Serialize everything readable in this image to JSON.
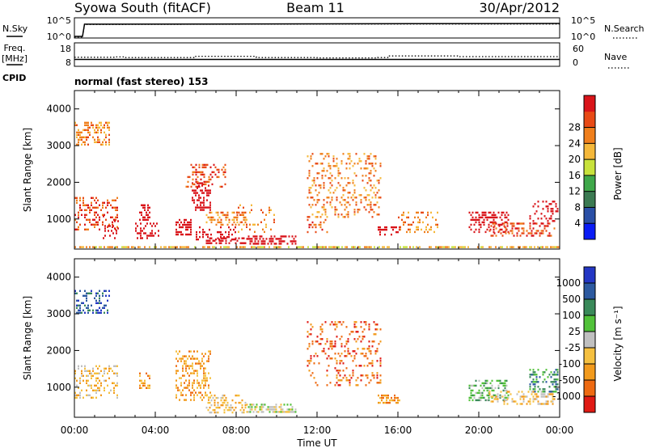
{
  "header": {
    "station": "Syowa South (fitACF)",
    "beam": "Beam 11",
    "date": "30/Apr/2012"
  },
  "aux_labels": {
    "nsky": "N.Sky",
    "nsearch": "N.Search",
    "freq_line1": "Freq.",
    "freq_line2": "[MHz]",
    "nave": "Nave",
    "cpid": "CPID",
    "cpid_value": "normal (fast stereo) 153"
  },
  "chart_data": [
    {
      "type": "line",
      "name": "noise",
      "left_ticks": [
        "10^5",
        "10^0"
      ],
      "right_ticks": [
        "10^5",
        "10^0"
      ],
      "series": [
        {
          "name": "N.Sky",
          "x": [
            0,
            0.4,
            0.5,
            12,
            24
          ],
          "values": [
            0,
            0,
            3.6,
            3.7,
            3.8
          ]
        },
        {
          "name": "N.Search",
          "x": [
            0,
            0.4,
            0.5,
            12,
            24
          ],
          "values": [
            0,
            0,
            3.7,
            3.8,
            3.8
          ]
        }
      ]
    },
    {
      "type": "line",
      "name": "frequency-nave",
      "left_ticks": [
        "18",
        "8"
      ],
      "right_ticks": [
        "60",
        "0"
      ],
      "ylim_left": [
        8,
        18
      ],
      "ylim_right": [
        0,
        60
      ],
      "series": [
        {
          "name": "Freq.",
          "x": [
            0,
            24
          ],
          "values": [
            10.7,
            10.7
          ]
        },
        {
          "name": "Nave",
          "x": [
            0,
            2,
            2.5,
            6,
            9,
            12,
            15,
            15.5,
            19,
            24
          ],
          "values": [
            23,
            24,
            22,
            26,
            22,
            21,
            22,
            27,
            25,
            25
          ]
        }
      ]
    },
    {
      "type": "heatmap",
      "name": "power",
      "ylabel": "Slant Range [km]",
      "xlim": [
        0,
        24
      ],
      "ylim": [
        180,
        4500
      ],
      "y_ticks": [
        "1000",
        "2000",
        "3000",
        "4000"
      ],
      "colorbar_label": "Power [dB]",
      "colorbar_ticks": [
        "4",
        "8",
        "12",
        "16",
        "20",
        "24",
        "28"
      ],
      "colorbar_colors": [
        "#0a1cf5",
        "#2a4fa6",
        "#3b7a52",
        "#3fa84a",
        "#c8e23c",
        "#f5b83a",
        "#f07f1c",
        "#e84a16",
        "#d9141a"
      ],
      "clusters": [
        {
          "x": [
            0.0,
            1.8
          ],
          "r": [
            2950,
            3650
          ],
          "v": 6,
          "d": 0.45
        },
        {
          "x": [
            0.0,
            2.2
          ],
          "r": [
            650,
            1600
          ],
          "v": 7,
          "d": 0.25
        },
        {
          "x": [
            1.4,
            2.2
          ],
          "r": [
            400,
            1100
          ],
          "v": 10,
          "d": 0.25
        },
        {
          "x": [
            3.2,
            3.8
          ],
          "r": [
            900,
            1400
          ],
          "v": 20,
          "d": 0.55
        },
        {
          "x": [
            3.0,
            4.2
          ],
          "r": [
            400,
            900
          ],
          "v": 11,
          "d": 0.3
        },
        {
          "x": [
            5.0,
            5.8
          ],
          "r": [
            500,
            1000
          ],
          "v": 24,
          "d": 0.55
        },
        {
          "x": [
            5.8,
            6.8
          ],
          "r": [
            1200,
            2000
          ],
          "v": 18,
          "d": 0.4
        },
        {
          "x": [
            5.5,
            7.5
          ],
          "r": [
            1800,
            2500
          ],
          "v": 7,
          "d": 0.3
        },
        {
          "x": [
            6.5,
            8.5
          ],
          "r": [
            800,
            1200
          ],
          "v": 6,
          "d": 0.35
        },
        {
          "x": [
            6.0,
            8.0
          ],
          "r": [
            400,
            800
          ],
          "v": 14,
          "d": 0.3
        },
        {
          "x": [
            6.5,
            8.5
          ],
          "r": [
            250,
            500
          ],
          "v": 22,
          "d": 0.55
        },
        {
          "x": [
            8.5,
            11.0
          ],
          "r": [
            250,
            550
          ],
          "v": 9,
          "d": 0.55
        },
        {
          "x": [
            8.0,
            10.0
          ],
          "r": [
            600,
            1400
          ],
          "v": 6,
          "d": 0.12
        },
        {
          "x": [
            11.5,
            15.2
          ],
          "r": [
            1000,
            2800
          ],
          "v": 6,
          "d": 0.22
        },
        {
          "x": [
            11.5,
            13.0
          ],
          "r": [
            600,
            1000
          ],
          "v": 7,
          "d": 0.2
        },
        {
          "x": [
            15.0,
            16.2
          ],
          "r": [
            500,
            800
          ],
          "v": 15,
          "d": 0.45
        },
        {
          "x": [
            16.0,
            18.0
          ],
          "r": [
            600,
            1200
          ],
          "v": 6,
          "d": 0.2
        },
        {
          "x": [
            19.5,
            21.5
          ],
          "r": [
            600,
            1200
          ],
          "v": 9,
          "d": 0.4
        },
        {
          "x": [
            20.5,
            23.8
          ],
          "r": [
            500,
            900
          ],
          "v": 7,
          "d": 0.35
        },
        {
          "x": [
            22.5,
            24.0
          ],
          "r": [
            800,
            1500
          ],
          "v": 10,
          "d": 0.35
        },
        {
          "x": [
            0.0,
            24.0
          ],
          "r": [
            180,
            260
          ],
          "v": 5,
          "d": 0.6
        }
      ]
    },
    {
      "type": "heatmap",
      "name": "velocity",
      "xlabel": "Time UT",
      "ylabel": "Slant Range [km]",
      "xlim": [
        0,
        24
      ],
      "ylim": [
        180,
        4500
      ],
      "x_ticks": [
        "00:00",
        "04:00",
        "08:00",
        "12:00",
        "16:00",
        "20:00",
        "00:00"
      ],
      "y_ticks": [
        "1000",
        "2000",
        "3000",
        "4000"
      ],
      "colorbar_label": "Velocity [m s⁻¹]",
      "colorbar_ticks": [
        "1000",
        "500",
        "100",
        "25",
        "-25",
        "-100",
        "-500",
        "-1000"
      ],
      "colorbar_colors": [
        "#2437c4",
        "#2d5aa0",
        "#3a8a5a",
        "#52c23a",
        "#c0c0c0",
        "#f5c040",
        "#f29a1c",
        "#ee6a12",
        "#e01a14"
      ],
      "clusters": [
        {
          "x": [
            0.0,
            1.8
          ],
          "r": [
            2950,
            3650
          ],
          "v": 1,
          "d": 0.4
        },
        {
          "x": [
            0.0,
            2.2
          ],
          "r": [
            650,
            1600
          ],
          "v": 5,
          "d": 0.25
        },
        {
          "x": [
            3.2,
            3.8
          ],
          "r": [
            900,
            1400
          ],
          "v": 6,
          "d": 0.5
        },
        {
          "x": [
            5.0,
            6.8
          ],
          "r": [
            600,
            2000
          ],
          "v": 6,
          "d": 0.35
        },
        {
          "x": [
            6.5,
            8.5
          ],
          "r": [
            250,
            800
          ],
          "v": 5,
          "d": 0.35
        },
        {
          "x": [
            8.5,
            11.0
          ],
          "r": [
            250,
            550
          ],
          "v": 4,
          "d": 0.55
        },
        {
          "x": [
            11.5,
            15.2
          ],
          "r": [
            1000,
            2800
          ],
          "v": 7,
          "d": 0.2
        },
        {
          "x": [
            15.0,
            16.2
          ],
          "r": [
            500,
            800
          ],
          "v": 6,
          "d": 0.45
        },
        {
          "x": [
            19.5,
            21.5
          ],
          "r": [
            600,
            1200
          ],
          "v": 3,
          "d": 0.4
        },
        {
          "x": [
            20.5,
            23.8
          ],
          "r": [
            500,
            900
          ],
          "v": 5,
          "d": 0.35
        },
        {
          "x": [
            22.5,
            24.0
          ],
          "r": [
            800,
            1500
          ],
          "v": 2,
          "d": 0.35
        }
      ]
    }
  ]
}
